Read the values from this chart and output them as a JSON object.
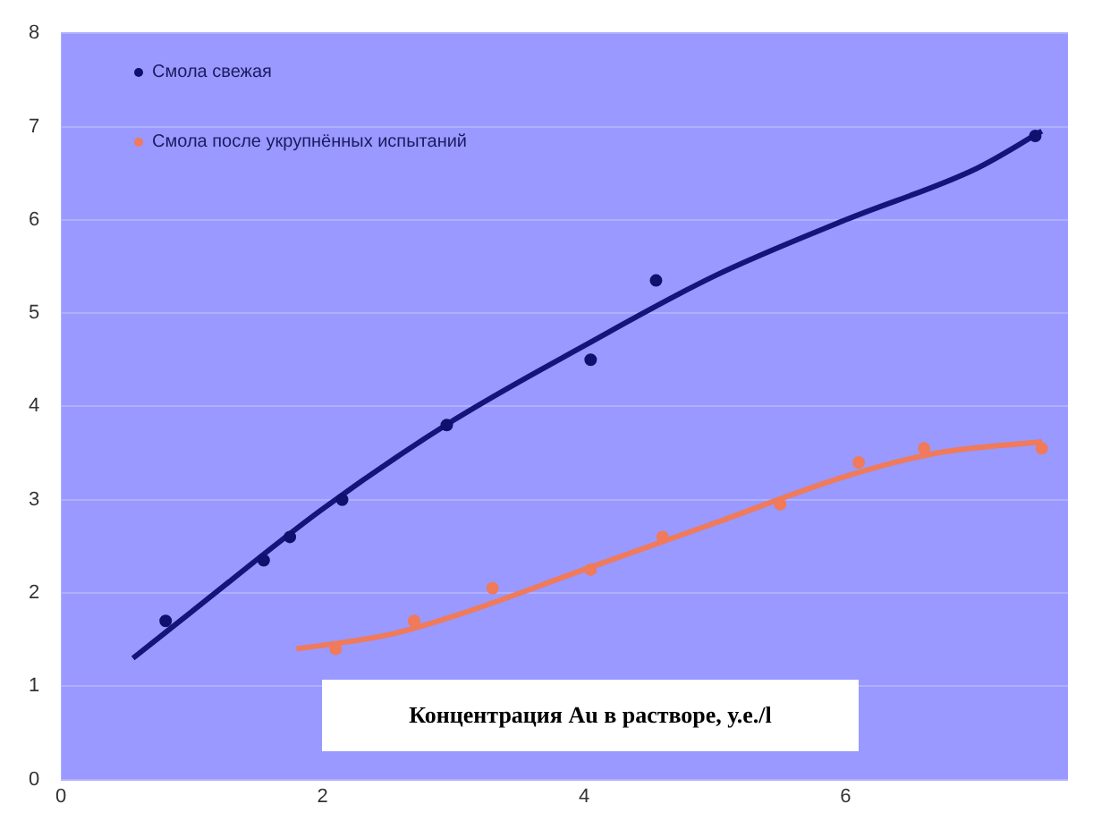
{
  "chart_data": {
    "type": "scatter",
    "xlabel": "Концентрация Au в растворе, у.е./l",
    "xlim": [
      0,
      7.7
    ],
    "xticks": [
      0,
      2,
      4,
      6
    ],
    "ylim": [
      0,
      8
    ],
    "yticks": [
      0,
      1,
      2,
      3,
      4,
      5,
      6,
      7,
      8
    ],
    "grid": "y",
    "legend": "top left",
    "marker": "circle",
    "series": [
      {
        "name": "Смола свежая",
        "color": "#10106e",
        "x": [
          0.8,
          1.55,
          1.75,
          2.15,
          2.95,
          4.05,
          4.55,
          7.45
        ],
        "values": [
          1.7,
          2.35,
          2.6,
          3.0,
          3.8,
          4.5,
          5.35,
          6.9
        ]
      },
      {
        "name": "Смола после укрупнённых испытаний",
        "color": "#f07a5a",
        "x": [
          2.1,
          2.7,
          3.3,
          4.05,
          4.6,
          5.5,
          6.1,
          6.6,
          7.5
        ],
        "values": [
          1.4,
          1.7,
          2.05,
          2.25,
          2.6,
          2.95,
          3.4,
          3.55,
          3.55
        ]
      },
      {
        "type": "line",
        "marker": "none",
        "color": "#14147a",
        "x": [
          0.55,
          1,
          2,
          3,
          4,
          5,
          6,
          7,
          7.5
        ],
        "values": [
          1.3,
          1.8,
          2.9,
          3.85,
          4.65,
          5.4,
          6.0,
          6.55,
          6.95
        ]
      },
      {
        "type": "line",
        "marker": "none",
        "color": "#f07a5a",
        "x": [
          1.8,
          2.5,
          3,
          4,
          5,
          6,
          6.7,
          7.5
        ],
        "values": [
          1.4,
          1.55,
          1.75,
          2.25,
          2.75,
          3.25,
          3.5,
          3.62
        ]
      }
    ]
  }
}
